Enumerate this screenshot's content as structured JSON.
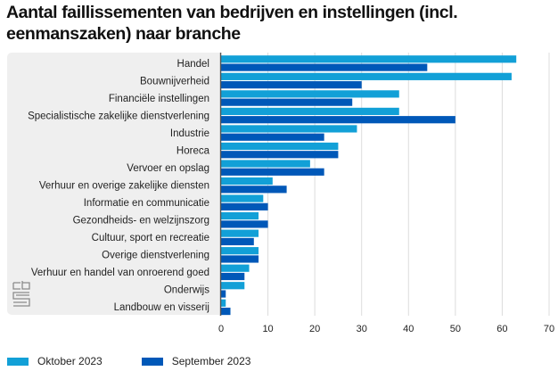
{
  "chart_data": {
    "type": "bar",
    "orientation": "horizontal",
    "title": "Aantal faillissementen van bedrijven en instellingen (incl. eenmanszaken) naar branche",
    "xlabel": "",
    "ylabel": "",
    "xlim": [
      0,
      70
    ],
    "xticks": [
      0,
      10,
      20,
      30,
      40,
      50,
      60,
      70
    ],
    "grid": true,
    "legend_position": "bottom-left",
    "categories": [
      "Handel",
      "Bouwnijverheid",
      "Financiële instellingen",
      "Specialistische zakelijke dienstverlening",
      "Industrie",
      "Horeca",
      "Vervoer en opslag",
      "Verhuur en overige zakelijke diensten",
      "Informatie en communicatie",
      "Gezondheids- en welzijnszorg",
      "Cultuur, sport en recreatie",
      "Overige dienstverlening",
      "Verhuur en handel van onroerend goed",
      "Onderwijs",
      "Landbouw en visserij"
    ],
    "series": [
      {
        "name": "Oktober 2023",
        "color": "#12a0d7",
        "values": [
          63,
          62,
          38,
          38,
          29,
          25,
          19,
          11,
          9,
          8,
          8,
          8,
          6,
          5,
          1
        ]
      },
      {
        "name": "September 2023",
        "color": "#0058b8",
        "values": [
          44,
          30,
          28,
          50,
          22,
          25,
          22,
          14,
          10,
          10,
          7,
          8,
          5,
          1,
          2
        ]
      }
    ]
  },
  "logo": {
    "icon": "cbs-logo-icon"
  }
}
